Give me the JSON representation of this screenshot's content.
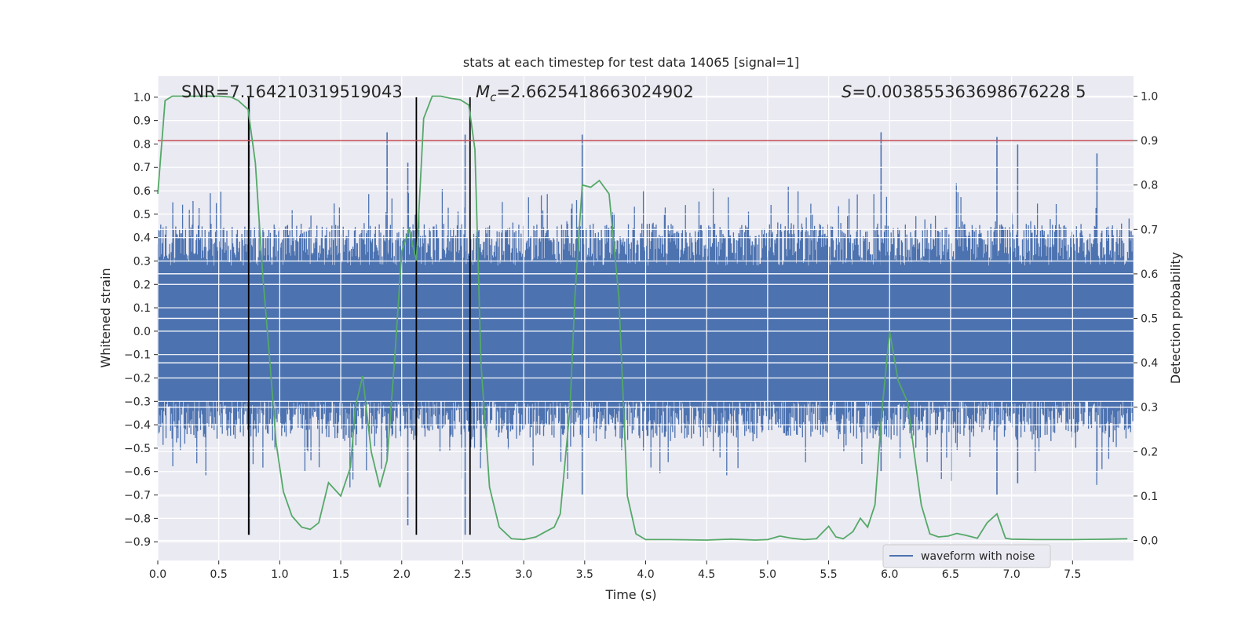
{
  "chart_data": {
    "type": "line",
    "title": "stats at each timestep for test data 14065 [signal=1]",
    "xlabel": "Time (s)",
    "ylabel_left": "Whitened strain",
    "ylabel_right": "Detection probability",
    "xlim": [
      0,
      8.0
    ],
    "ylim_left": [
      -0.98,
      1.09
    ],
    "ylim_right": [
      -0.045,
      1.045
    ],
    "x_ticks": [
      0.0,
      0.5,
      1.0,
      1.5,
      2.0,
      2.5,
      3.0,
      3.5,
      4.0,
      4.5,
      5.0,
      5.5,
      6.0,
      6.5,
      7.0,
      7.5
    ],
    "x_tick_labels": [
      "0.0",
      "0.5",
      "1.0",
      "1.5",
      "2.0",
      "2.5",
      "3.0",
      "3.5",
      "4.0",
      "4.5",
      "5.0",
      "5.5",
      "6.0",
      "6.5",
      "7.0",
      "7.5"
    ],
    "y_left_ticks": [
      1.0,
      0.9,
      0.8,
      0.7,
      0.6,
      0.5,
      0.4,
      0.3,
      0.2,
      0.1,
      0.0,
      -0.1,
      -0.2,
      -0.3,
      -0.4,
      -0.5,
      -0.6,
      -0.7,
      -0.8,
      -0.9
    ],
    "y_left_tick_labels": [
      "1.0",
      "0.9",
      "0.8",
      "0.7",
      "0.6",
      "0.5",
      "0.4",
      "0.3",
      "0.2",
      "0.1",
      "0.0",
      "−0.1",
      "−0.2",
      "−0.3",
      "−0.4",
      "−0.5",
      "−0.6",
      "−0.7",
      "−0.8",
      "−0.9"
    ],
    "y_right_ticks": [
      1.0,
      0.9,
      0.8,
      0.7,
      0.6,
      0.5,
      0.4,
      0.3,
      0.2,
      0.1,
      0.0
    ],
    "y_right_tick_labels": [
      "1.0",
      "0.9",
      "0.8",
      "0.7",
      "0.6",
      "0.5",
      "0.4",
      "0.3",
      "0.2",
      "0.1",
      "0.0"
    ],
    "annotations": {
      "snr": "SNR=7.164210319519043",
      "mc_symbol": "M",
      "mc_sub": "c",
      "mc_value": "=2.6625418663024902",
      "s_symbol": "S",
      "s_value": "=0.003855363698676228 5"
    },
    "threshold_right": 0.9,
    "vertical_markers_x": [
      0.745,
      2.12,
      2.56
    ],
    "legend": {
      "label": "waveform with noise",
      "position": "lower-right"
    },
    "grid": true,
    "colors": {
      "background": "#eaeaf2",
      "waveform": "#4c72b0",
      "probability": "#55a868",
      "threshold": "#c44e52",
      "markers": "#000000",
      "grid": "#ffffff"
    },
    "waveform": {
      "name": "waveform with noise",
      "spikes": [
        {
          "x": 0.75,
          "top": 1.0,
          "bottom": -0.87
        },
        {
          "x": 1.88,
          "top": 0.85,
          "bottom": -0.55
        },
        {
          "x": 2.05,
          "top": 0.72,
          "bottom": -0.83
        },
        {
          "x": 2.52,
          "top": 0.84,
          "bottom": -0.87
        },
        {
          "x": 3.48,
          "top": 0.84,
          "bottom": -0.7
        },
        {
          "x": 5.93,
          "top": 0.85,
          "bottom": -0.6
        },
        {
          "x": 6.88,
          "top": 0.83,
          "bottom": -0.7
        },
        {
          "x": 7.05,
          "top": 0.8,
          "bottom": -0.65
        },
        {
          "x": 7.7,
          "top": 0.76,
          "bottom": -0.6
        }
      ]
    },
    "probability": {
      "x": [
        0.0,
        0.06,
        0.12,
        0.2,
        0.3,
        0.4,
        0.5,
        0.6,
        0.66,
        0.74,
        0.8,
        0.86,
        0.92,
        0.97,
        1.03,
        1.1,
        1.18,
        1.25,
        1.32,
        1.4,
        1.5,
        1.58,
        1.62,
        1.68,
        1.75,
        1.82,
        1.88,
        1.94,
        2.0,
        2.06,
        2.12,
        2.18,
        2.25,
        2.32,
        2.4,
        2.48,
        2.55,
        2.6,
        2.65,
        2.72,
        2.8,
        2.9,
        3.0,
        3.1,
        3.18,
        3.25,
        3.3,
        3.38,
        3.42,
        3.48,
        3.55,
        3.62,
        3.7,
        3.78,
        3.85,
        3.92,
        4.0,
        4.2,
        4.5,
        4.7,
        4.9,
        5.0,
        5.1,
        5.2,
        5.3,
        5.4,
        5.5,
        5.56,
        5.62,
        5.7,
        5.76,
        5.82,
        5.88,
        5.94,
        6.0,
        6.07,
        6.15,
        6.2,
        6.26,
        6.33,
        6.4,
        6.48,
        6.55,
        6.62,
        6.72,
        6.8,
        6.88,
        6.95,
        7.0,
        7.2,
        7.5,
        7.8,
        7.95
      ],
      "y": [
        0.78,
        0.99,
        1.0,
        1.0,
        1.0,
        1.0,
        1.0,
        0.998,
        0.99,
        0.97,
        0.85,
        0.6,
        0.4,
        0.22,
        0.11,
        0.055,
        0.03,
        0.025,
        0.04,
        0.13,
        0.1,
        0.165,
        0.3,
        0.37,
        0.2,
        0.12,
        0.18,
        0.4,
        0.65,
        0.7,
        0.63,
        0.95,
        1.0,
        1.0,
        0.995,
        0.992,
        0.98,
        0.88,
        0.4,
        0.12,
        0.03,
        0.004,
        0.002,
        0.008,
        0.02,
        0.03,
        0.06,
        0.3,
        0.55,
        0.8,
        0.795,
        0.81,
        0.78,
        0.55,
        0.1,
        0.015,
        0.002,
        0.002,
        0.001,
        0.003,
        0.001,
        0.002,
        0.01,
        0.005,
        0.002,
        0.004,
        0.032,
        0.008,
        0.004,
        0.02,
        0.05,
        0.03,
        0.08,
        0.3,
        0.47,
        0.36,
        0.31,
        0.2,
        0.08,
        0.015,
        0.008,
        0.01,
        0.016,
        0.012,
        0.005,
        0.04,
        0.06,
        0.005,
        0.003,
        0.002,
        0.002,
        0.003,
        0.004
      ]
    }
  }
}
